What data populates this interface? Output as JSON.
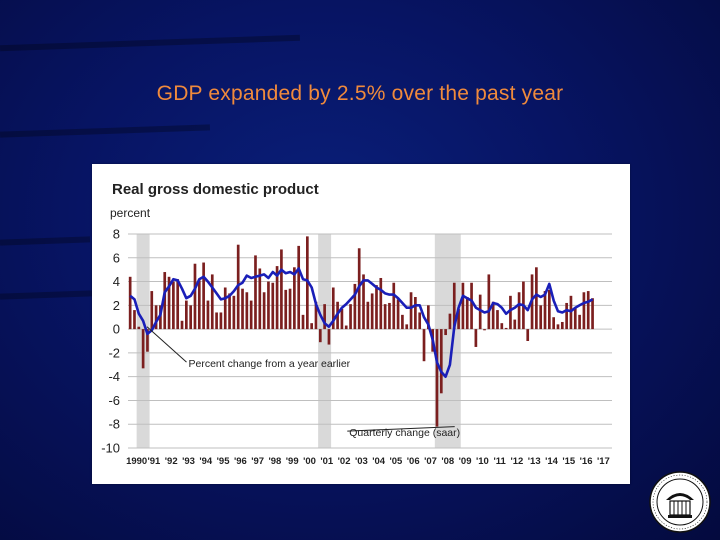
{
  "slide": {
    "title": "GDP expanded by 2.5% over the past year"
  },
  "colors": {
    "background": "#071463",
    "title": "#f08a3c",
    "bars": "#7b1f1f",
    "line": "#1a1fb8",
    "recession_shade": "#d9d9d9"
  },
  "icons": {
    "seal": "federal-reserve-seal-icon"
  },
  "chart_data": {
    "type": "bar",
    "title": "Real gross domestic product",
    "ylabel": "percent",
    "xlabel": "",
    "ylim": [
      -10,
      8
    ],
    "yticks": [
      8,
      6,
      4,
      2,
      0,
      -2,
      -4,
      -6,
      -8,
      -10
    ],
    "grid": true,
    "xlim": [
      1990,
      2018
    ],
    "tick_labels": [
      "1990",
      "'91",
      "'92",
      "'93",
      "'94",
      "'95",
      "'96",
      "'97",
      "'98",
      "'99",
      "'00",
      "'01",
      "'02",
      "'03",
      "'04",
      "'05",
      "'06",
      "'07",
      "'08",
      "'09",
      "'10",
      "'11",
      "'12",
      "'13",
      "'14",
      "'15",
      "'16",
      "'17"
    ],
    "recessions": [
      [
        1990.5,
        1991.25
      ],
      [
        2001.0,
        2001.75
      ],
      [
        2007.75,
        2009.25
      ]
    ],
    "annotations": [
      {
        "text": "Percent change from a year earlier",
        "target_x": 1991.1,
        "target_y": 0.2,
        "label_x": 1993.5,
        "label_y": -3.2
      },
      {
        "text": "Quarterly change (saar)",
        "target_x": 2008.9,
        "target_y": -8.2,
        "label_x": 2002.8,
        "label_y": -9.0
      }
    ],
    "series": [
      {
        "name": "Quarterly change (saar)",
        "type": "bar",
        "start": 1990.0,
        "step": 0.25,
        "values": [
          4.4,
          1.6,
          0.2,
          -3.3,
          -1.9,
          3.2,
          2.0,
          2.0,
          4.8,
          4.4,
          4.0,
          4.2,
          0.7,
          2.4,
          2.0,
          5.5,
          4.1,
          5.6,
          2.4,
          4.6,
          1.4,
          1.4,
          3.5,
          3.0,
          2.8,
          7.1,
          3.4,
          3.1,
          2.4,
          6.2,
          5.1,
          3.1,
          4.0,
          3.9,
          5.3,
          6.7,
          3.3,
          3.4,
          5.2,
          7.0,
          1.2,
          7.8,
          0.5,
          2.3,
          -1.1,
          2.1,
          -1.3,
          3.5,
          2.3,
          1.7,
          0.3,
          2.1,
          3.8,
          6.8,
          4.6,
          2.3,
          3.0,
          3.7,
          4.3,
          2.1,
          2.2,
          3.9,
          2.5,
          1.2,
          0.4,
          3.1,
          2.7,
          1.4,
          -2.7,
          2.0,
          -1.9,
          -8.2,
          -5.4,
          -0.5,
          1.3,
          3.9,
          1.7,
          3.9,
          2.7,
          3.9,
          -1.5,
          2.9,
          -0.1,
          4.6,
          2.3,
          1.6,
          0.5,
          0.1,
          2.8,
          0.8,
          3.1,
          4.0,
          -1.0,
          4.6,
          5.2,
          2.0,
          3.2,
          3.3,
          1.0,
          0.4,
          0.6,
          2.2,
          2.8,
          1.8,
          1.2,
          3.1,
          3.2,
          2.6
        ]
      },
      {
        "name": "Percent change from a year earlier",
        "type": "line",
        "start": 1990.0,
        "step": 0.25,
        "values": [
          2.8,
          2.5,
          1.3,
          0.7,
          -0.4,
          -0.1,
          0.6,
          1.2,
          3.1,
          3.6,
          4.2,
          4.1,
          3.4,
          2.6,
          2.8,
          3.4,
          4.2,
          4.4,
          4.0,
          3.5,
          3.0,
          2.5,
          2.6,
          2.8,
          3.2,
          3.7,
          3.9,
          4.5,
          4.3,
          4.4,
          4.5,
          4.6,
          4.3,
          4.8,
          4.5,
          5.0,
          4.7,
          4.8,
          4.6,
          5.1,
          4.2,
          4.1,
          3.5,
          2.1,
          1.2,
          0.5,
          0.2,
          0.7,
          1.3,
          1.8,
          2.1,
          2.5,
          2.9,
          3.6,
          4.1,
          4.1,
          3.8,
          3.5,
          3.3,
          3.0,
          2.9,
          2.9,
          2.6,
          2.2,
          1.8,
          1.8,
          2.0,
          2.0,
          1.0,
          0.4,
          -0.9,
          -2.8,
          -3.6,
          -4.0,
          -3.0,
          0.2,
          1.8,
          2.8,
          2.6,
          2.4,
          1.8,
          1.6,
          1.4,
          1.5,
          2.2,
          2.1,
          1.8,
          1.3,
          1.6,
          1.8,
          2.1,
          2.0,
          1.6,
          2.5,
          2.9,
          2.7,
          2.9,
          3.8,
          2.4,
          1.5,
          1.4,
          1.6,
          1.5,
          1.8,
          2.0,
          2.2,
          2.3,
          2.5
        ]
      }
    ]
  }
}
